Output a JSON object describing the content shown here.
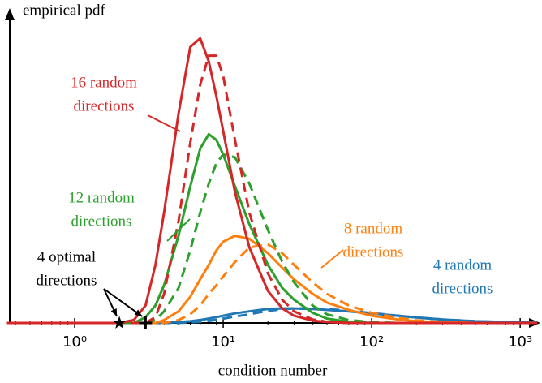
{
  "chart_data": {
    "type": "line",
    "xlabel": "condition number",
    "ylabel": "empirical pdf",
    "xscale": "log",
    "xlim": [
      0.35,
      1300
    ],
    "ylim": [
      0,
      1
    ],
    "xticks": [
      {
        "value": 1,
        "label": "10⁰"
      },
      {
        "value": 10,
        "label": "10¹"
      },
      {
        "value": 100,
        "label": "10²"
      },
      {
        "value": 1000,
        "label": "10³"
      }
    ],
    "minor_ticks": true,
    "x": [
      0.35,
      1,
      2,
      2.5,
      3,
      3.5,
      4,
      5,
      6,
      7,
      8,
      9,
      10,
      12,
      15,
      20,
      25,
      30,
      40,
      50,
      70,
      100,
      150,
      200,
      300,
      500,
      1000,
      1300
    ],
    "series": [
      {
        "color": "#1f77b4",
        "dash": false,
        "values": [
          0,
          0,
          0,
          0,
          0,
          0,
          0,
          0.003,
          0.006,
          0.01,
          0.015,
          0.02,
          0.025,
          0.033,
          0.04,
          0.048,
          0.05,
          0.05,
          0.048,
          0.045,
          0.04,
          0.033,
          0.025,
          0.019,
          0.012,
          0.006,
          0.002,
          0.001
        ]
      },
      {
        "color": "#1f77b4",
        "dash": true,
        "values": [
          0,
          0,
          0,
          0,
          0,
          0,
          0,
          0,
          0.002,
          0.004,
          0.007,
          0.011,
          0.015,
          0.022,
          0.03,
          0.042,
          0.047,
          0.05,
          0.05,
          0.048,
          0.042,
          0.034,
          0.025,
          0.019,
          0.012,
          0.006,
          0.002,
          0.001
        ]
      },
      {
        "color": "#ff7f0e",
        "dash": false,
        "values": [
          0,
          0,
          0,
          0,
          0,
          0,
          0.01,
          0.04,
          0.09,
          0.15,
          0.2,
          0.25,
          0.28,
          0.3,
          0.29,
          0.24,
          0.19,
          0.15,
          0.1,
          0.07,
          0.045,
          0.025,
          0.012,
          0.006,
          0.002,
          0,
          0,
          0
        ]
      },
      {
        "color": "#ff7f0e",
        "dash": true,
        "values": [
          0,
          0,
          0,
          0,
          0,
          0,
          0,
          0.01,
          0.03,
          0.06,
          0.1,
          0.13,
          0.16,
          0.21,
          0.26,
          0.27,
          0.24,
          0.2,
          0.14,
          0.1,
          0.06,
          0.035,
          0.018,
          0.009,
          0.003,
          0,
          0,
          0
        ]
      },
      {
        "color": "#2ca02c",
        "dash": false,
        "values": [
          0,
          0,
          0,
          0,
          0.02,
          0.06,
          0.13,
          0.3,
          0.47,
          0.6,
          0.65,
          0.63,
          0.58,
          0.47,
          0.34,
          0.2,
          0.12,
          0.08,
          0.035,
          0.015,
          0.004,
          0,
          0,
          0,
          0,
          0,
          0,
          0
        ]
      },
      {
        "color": "#2ca02c",
        "dash": true,
        "values": [
          0,
          0,
          0,
          0,
          0,
          0.01,
          0.04,
          0.12,
          0.25,
          0.38,
          0.48,
          0.55,
          0.58,
          0.57,
          0.48,
          0.32,
          0.21,
          0.14,
          0.06,
          0.03,
          0.01,
          0.003,
          0,
          0,
          0,
          0,
          0,
          0
        ]
      },
      {
        "color": "#d62728",
        "dash": false,
        "values": [
          0,
          0,
          0,
          0.01,
          0.06,
          0.2,
          0.38,
          0.72,
          0.95,
          0.98,
          0.9,
          0.78,
          0.66,
          0.45,
          0.26,
          0.11,
          0.05,
          0.025,
          0.008,
          0.003,
          0,
          0,
          0,
          0,
          0,
          0,
          0,
          0
        ]
      },
      {
        "color": "#d62728",
        "dash": true,
        "values": [
          0,
          0,
          0,
          0,
          0,
          0.02,
          0.1,
          0.35,
          0.62,
          0.82,
          0.92,
          0.92,
          0.85,
          0.63,
          0.38,
          0.17,
          0.08,
          0.04,
          0.012,
          0.004,
          0,
          0,
          0,
          0,
          0,
          0,
          0,
          0
        ]
      }
    ],
    "points": [
      {
        "x": 2,
        "marker": "star"
      },
      {
        "x": 3,
        "marker": "plus"
      }
    ],
    "annotations": [
      {
        "lines": [
          "16 random",
          "directions"
        ],
        "color": "#d62728"
      },
      {
        "lines": [
          "12 random",
          "directions"
        ],
        "color": "#2ca02c"
      },
      {
        "lines": [
          "8 random",
          "directions"
        ],
        "color": "#ff7f0e"
      },
      {
        "lines": [
          "4 random",
          "directions"
        ],
        "color": "#1f77b4"
      },
      {
        "lines": [
          "4 optimal",
          "directions"
        ],
        "color": "#000000"
      }
    ]
  }
}
